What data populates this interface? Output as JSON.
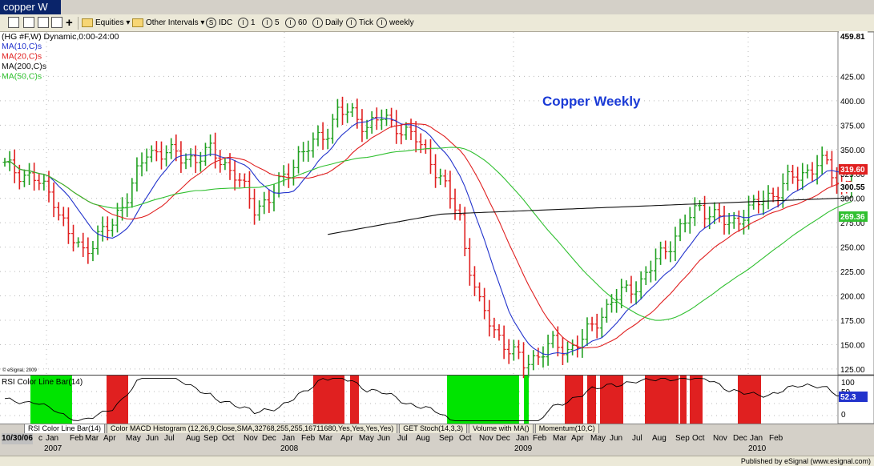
{
  "window": {
    "title": "copper W"
  },
  "toolbar": {
    "equities": "Equities",
    "other_intervals": "Other Intervals",
    "idc": "IDC",
    "i1": "1",
    "i5": "5",
    "i60": "60",
    "daily": "Daily",
    "tick": "Tick",
    "weekly": "weekly"
  },
  "chart": {
    "header": "(HG #F,W) Dynamic,0:00-24:00",
    "studies": [
      {
        "label": "MA(10,C)s",
        "color": "#2233cc"
      },
      {
        "label": "MA(20,C)s",
        "color": "#e02020"
      },
      {
        "label": "MA(200,C)s",
        "color": "#111111"
      },
      {
        "label": "MA(50,C)s",
        "color": "#30c030"
      }
    ],
    "annotation": "Copper Weekly",
    "watermark": "© eSignal, 2009",
    "price_badges": [
      {
        "text": "459.81",
        "bg": "#ffffff",
        "fg": "#000000"
      },
      {
        "text": "319.60",
        "bg": "#e02020",
        "fg": "#ffffff"
      },
      {
        "text": "300.55",
        "bg": "#ffffff",
        "fg": "#000000"
      },
      {
        "text": "269.36",
        "bg": "#30c030",
        "fg": "#ffffff"
      },
      {
        "text": "52.3",
        "bg": "#2233cc",
        "fg": "#ffffff"
      }
    ],
    "price_axis_ticks": [
      "425.00",
      "400.00",
      "375.00",
      "350.00",
      "325.00",
      "300.00",
      "275.00",
      "250.00",
      "225.00",
      "200.00",
      "175.00",
      "150.00",
      "125.00"
    ],
    "rsi_title": "RSI Color Line Bar(14)",
    "rsi_axis_ticks": [
      "100",
      "50",
      "0"
    ],
    "months": [
      "10/30/06",
      "c",
      "Jan",
      "Feb",
      "Mar",
      "Apr",
      "May",
      "Jun",
      "Jul",
      "Aug",
      "Sep",
      "Oct",
      "Nov",
      "Dec",
      "Jan",
      "Feb",
      "Mar",
      "Apr",
      "May",
      "Jun",
      "Jul",
      "Aug",
      "Sep",
      "Oct",
      "Nov",
      "Dec",
      "Jan",
      "Feb",
      "Mar",
      "Apr",
      "May",
      "Jun",
      "Jul",
      "Aug",
      "Sep",
      "Oct",
      "Nov",
      "Dec",
      "Jan",
      "Feb"
    ],
    "years": [
      "2007",
      "2008",
      "2009",
      "2010"
    ]
  },
  "tabs": [
    "RSI Color Line Bar(14)",
    "Color MACD Histogram (12,26,9,Close,SMA,32768,255,255,16711680,Yes,Yes,Yes,Yes)",
    "GET Stoch(14,3,3)",
    "Volume with MA()",
    "Momentum(10,C)"
  ],
  "status": {
    "published": "Published by eSignal (www.esignal.com)"
  },
  "colors": {
    "up": "#20a020",
    "down": "#e02020",
    "rsi_line": "#2233cc",
    "ma10": "#2233cc",
    "ma20": "#e02020",
    "ma200": "#111111",
    "ma50": "#30c030"
  }
}
